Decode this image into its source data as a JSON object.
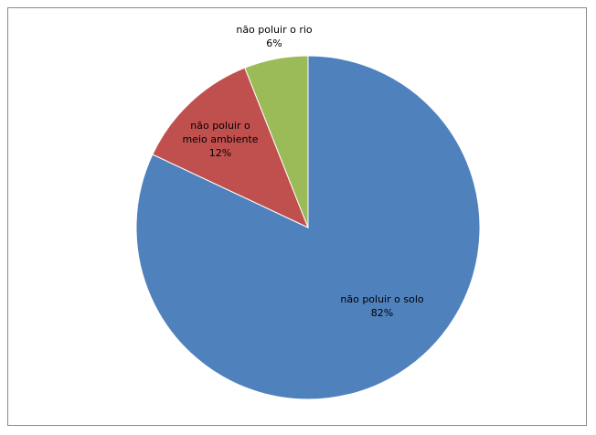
{
  "chart_data": {
    "type": "pie",
    "title": "",
    "start_angle_deg": 0,
    "direction": "clockwise",
    "slices": [
      {
        "name": "não poluir o solo",
        "label_lines": [
          "não poluir o solo"
        ],
        "value": 82,
        "percent_label": "82%",
        "color": "#4F81BD"
      },
      {
        "name": "não poluir o meio ambiente",
        "label_lines": [
          "não poluir o",
          "meio ambiente"
        ],
        "value": 12,
        "percent_label": "12%",
        "color": "#C0504D"
      },
      {
        "name": "não poluir o rio",
        "label_lines": [
          "não poluir o rio"
        ],
        "value": 6,
        "percent_label": "6%",
        "color": "#9BBB59"
      }
    ]
  }
}
